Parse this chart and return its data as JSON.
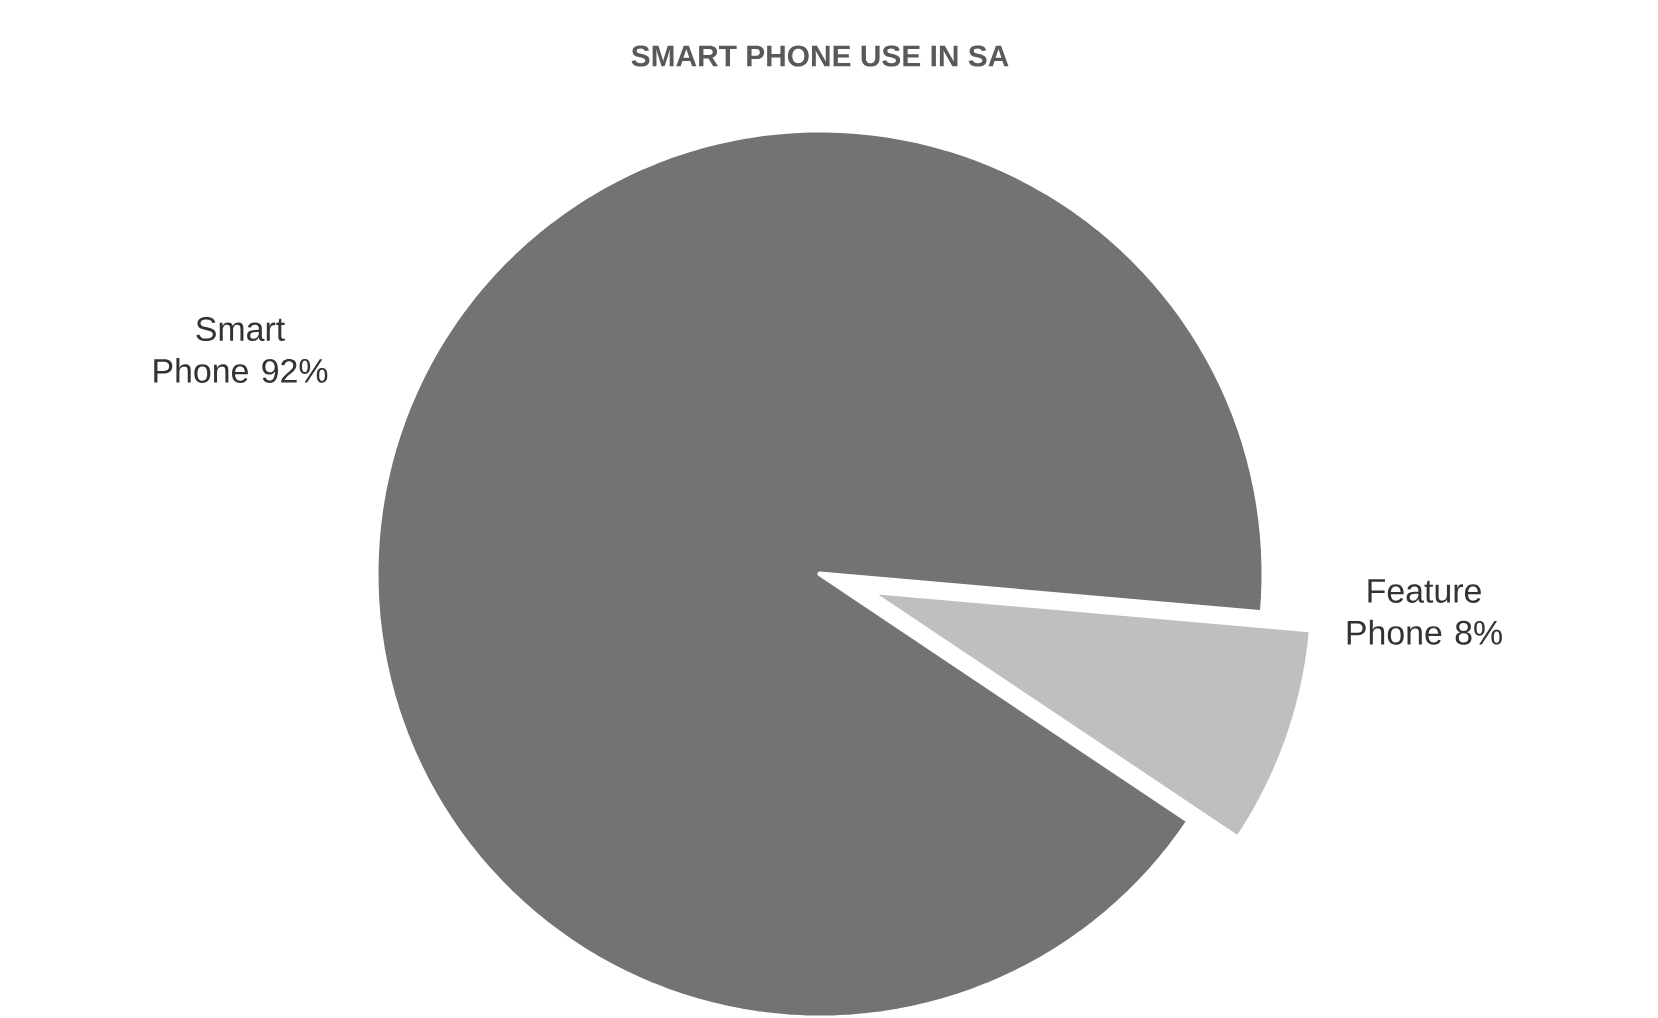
{
  "chart_data": {
    "type": "pie",
    "title": "SMART PHONE USE IN SA",
    "categories": [
      "Smart Phone",
      "Feature Phone"
    ],
    "values": [
      92,
      8
    ],
    "colors": [
      "#737373",
      "#bfbfbf"
    ],
    "value_labels": [
      "92%",
      "8%"
    ]
  }
}
